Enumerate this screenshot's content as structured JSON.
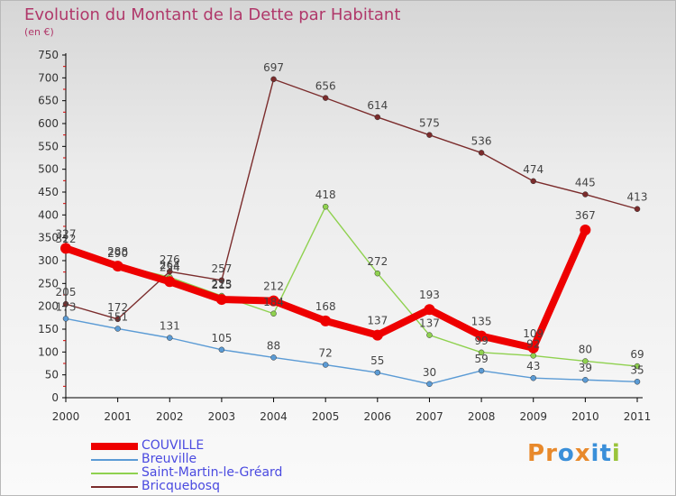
{
  "header": {
    "title": "Evolution du Montant de la Dette par Habitant",
    "subtitle": "(en €)"
  },
  "colors": {
    "title": "#b0386a",
    "legend_text": "#4a4ae0",
    "axis_text": "#333333"
  },
  "logo": {
    "text": "Proxiti",
    "letters": [
      "P",
      "r",
      "o",
      "x",
      "i",
      "t",
      "i"
    ],
    "letter_colors": [
      "#e8892b",
      "#e8892b",
      "#3a8fd9",
      "#e8892b",
      "#3a8fd9",
      "#3a8fd9",
      "#9ac43c"
    ]
  },
  "chart_data": {
    "type": "line",
    "title": "Evolution du Montant de la Dette par Habitant",
    "subtitle": "(en €)",
    "xlabel": "",
    "ylabel": "",
    "x": [
      2000,
      2001,
      2002,
      2003,
      2004,
      2005,
      2006,
      2007,
      2008,
      2009,
      2010,
      2011
    ],
    "ylim": [
      0,
      750
    ],
    "yticks": [
      0,
      50,
      100,
      150,
      200,
      250,
      300,
      350,
      400,
      450,
      500,
      550,
      600,
      650,
      700,
      750
    ],
    "grid": false,
    "legend_position": "bottom-left",
    "series": [
      {
        "name": "COUVILLE",
        "color": "#ee0000",
        "values": [
          327,
          288,
          254,
          215,
          212,
          168,
          137,
          193,
          135,
          109,
          367,
          null
        ]
      },
      {
        "name": "Breuville",
        "color": "#5b9bd5",
        "values": [
          173,
          151,
          131,
          105,
          88,
          72,
          55,
          30,
          59,
          43,
          39,
          35
        ]
      },
      {
        "name": "Saint-Martin-le-Gréard",
        "color": "#8fd14f",
        "values": [
          322,
          290,
          264,
          223,
          184,
          418,
          272,
          137,
          99,
          92,
          80,
          69
        ]
      },
      {
        "name": "Bricquebosq",
        "color": "#7b2c2c",
        "values": [
          205,
          172,
          276,
          257,
          697,
          656,
          614,
          575,
          536,
          474,
          445,
          413
        ]
      }
    ]
  }
}
